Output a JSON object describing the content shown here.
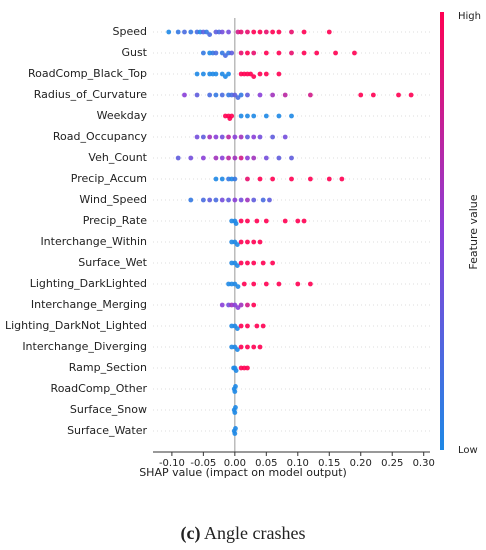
{
  "chart_data": {
    "type": "beeswarm",
    "xlabel": "SHAP value (impact on model output)",
    "colorbar_label": "Feature value",
    "colorbar_high": "High",
    "colorbar_low": "Low",
    "colormap": [
      "#1e88e5",
      "#8a3fd8",
      "#ff0052"
    ],
    "caption_label": "(c)",
    "caption": "Angle crashes",
    "xlim": [
      -0.13,
      0.31
    ],
    "xticks": [
      {
        "value": -0.1,
        "label": "-0.10"
      },
      {
        "value": -0.05,
        "label": "-0.05"
      },
      {
        "value": 0,
        "label": "0.00"
      },
      {
        "value": 0.05,
        "label": "0.05"
      },
      {
        "value": 0.1,
        "label": "0.10"
      },
      {
        "value": 0.15,
        "label": "0.15"
      },
      {
        "value": 0.2,
        "label": "0.20"
      },
      {
        "value": 0.25,
        "label": "0.25"
      },
      {
        "value": 0.3,
        "label": "0.30"
      }
    ],
    "series": [
      {
        "name": "Speed",
        "points": [
          [
            -0.105,
            0
          ],
          [
            -0.09,
            0.1
          ],
          [
            -0.08,
            0.2
          ],
          [
            -0.07,
            0.1
          ],
          [
            -0.06,
            0.2
          ],
          [
            -0.055,
            0
          ],
          [
            -0.05,
            0.3
          ],
          [
            -0.045,
            0.1
          ],
          [
            -0.04,
            0.2
          ],
          [
            -0.03,
            0.3
          ],
          [
            -0.025,
            0.2
          ],
          [
            -0.02,
            0.4
          ],
          [
            -0.01,
            0.4
          ],
          [
            0.005,
            0.8
          ],
          [
            0.01,
            0.9
          ],
          [
            0.02,
            0.9
          ],
          [
            0.03,
            1
          ],
          [
            0.04,
            1
          ],
          [
            0.05,
            0.9
          ],
          [
            0.06,
            1
          ],
          [
            0.07,
            1
          ],
          [
            0.09,
            0.9
          ],
          [
            0.11,
            1
          ],
          [
            0.15,
            1
          ]
        ]
      },
      {
        "name": "Gust",
        "points": [
          [
            -0.05,
            0.1
          ],
          [
            -0.04,
            0
          ],
          [
            -0.035,
            0.1
          ],
          [
            -0.03,
            0.2
          ],
          [
            -0.02,
            0.1
          ],
          [
            -0.015,
            0.2
          ],
          [
            -0.01,
            0.1
          ],
          [
            -0.005,
            0.3
          ],
          [
            0.01,
            0.9
          ],
          [
            0.02,
            1
          ],
          [
            0.03,
            0.9
          ],
          [
            0.05,
            1
          ],
          [
            0.07,
            1
          ],
          [
            0.09,
            0.9
          ],
          [
            0.11,
            1
          ],
          [
            0.13,
            1
          ],
          [
            0.16,
            1
          ],
          [
            0.19,
            1
          ]
        ]
      },
      {
        "name": "RoadComp_Black_Top",
        "points": [
          [
            -0.06,
            0
          ],
          [
            -0.05,
            0
          ],
          [
            -0.04,
            0
          ],
          [
            -0.035,
            0
          ],
          [
            -0.03,
            0
          ],
          [
            -0.02,
            0
          ],
          [
            -0.015,
            0
          ],
          [
            -0.01,
            0
          ],
          [
            0.01,
            1
          ],
          [
            0.015,
            1
          ],
          [
            0.02,
            1
          ],
          [
            0.025,
            1
          ],
          [
            0.03,
            1
          ],
          [
            0.04,
            1
          ],
          [
            0.05,
            1
          ],
          [
            0.07,
            1
          ]
        ]
      },
      {
        "name": "Radius_of_Curvature",
        "points": [
          [
            -0.08,
            0.5
          ],
          [
            -0.06,
            0.3
          ],
          [
            -0.04,
            0.2
          ],
          [
            -0.03,
            0.1
          ],
          [
            -0.02,
            0.2
          ],
          [
            -0.01,
            0.1
          ],
          [
            -0.005,
            0.2
          ],
          [
            0,
            0.3
          ],
          [
            0.005,
            0.2
          ],
          [
            0.01,
            0.1
          ],
          [
            0.02,
            0.3
          ],
          [
            0.04,
            0.5
          ],
          [
            0.06,
            0.6
          ],
          [
            0.08,
            0.7
          ],
          [
            0.12,
            0.8
          ],
          [
            0.2,
            1
          ],
          [
            0.22,
            1
          ],
          [
            0.26,
            1
          ],
          [
            0.28,
            1
          ]
        ]
      },
      {
        "name": "Weekday",
        "points": [
          [
            -0.015,
            1
          ],
          [
            -0.01,
            1
          ],
          [
            -0.008,
            1
          ],
          [
            -0.005,
            1
          ],
          [
            0.01,
            0
          ],
          [
            0.02,
            0
          ],
          [
            0.03,
            0
          ],
          [
            0.05,
            0
          ],
          [
            0.07,
            0
          ],
          [
            0.09,
            0
          ]
        ]
      },
      {
        "name": "Road_Occupancy",
        "points": [
          [
            -0.06,
            0.4
          ],
          [
            -0.05,
            0.3
          ],
          [
            -0.04,
            0.6
          ],
          [
            -0.03,
            0.5
          ],
          [
            -0.02,
            0.4
          ],
          [
            -0.01,
            0.7
          ],
          [
            0,
            0.5
          ],
          [
            0.01,
            0.6
          ],
          [
            0.02,
            0.3
          ],
          [
            0.03,
            0.5
          ],
          [
            0.04,
            0.4
          ],
          [
            0.06,
            0.3
          ],
          [
            0.08,
            0.4
          ]
        ]
      },
      {
        "name": "Veh_Count",
        "points": [
          [
            -0.09,
            0.3
          ],
          [
            -0.07,
            0.4
          ],
          [
            -0.05,
            0.5
          ],
          [
            -0.03,
            0.6
          ],
          [
            -0.02,
            0.5
          ],
          [
            -0.01,
            0.7
          ],
          [
            0,
            0.6
          ],
          [
            0.01,
            0.8
          ],
          [
            0.02,
            0.5
          ],
          [
            0.03,
            0.6
          ],
          [
            0.05,
            0.4
          ],
          [
            0.07,
            0.3
          ],
          [
            0.09,
            0.3
          ]
        ]
      },
      {
        "name": "Precip_Accum",
        "points": [
          [
            -0.03,
            0
          ],
          [
            -0.02,
            0
          ],
          [
            -0.01,
            0.1
          ],
          [
            -0.005,
            0
          ],
          [
            0,
            0.1
          ],
          [
            0.02,
            0.9
          ],
          [
            0.04,
            1
          ],
          [
            0.06,
            1
          ],
          [
            0.09,
            1
          ],
          [
            0.12,
            1
          ],
          [
            0.15,
            1
          ],
          [
            0.17,
            1
          ]
        ]
      },
      {
        "name": "Wind_Speed",
        "points": [
          [
            -0.07,
            0.1
          ],
          [
            -0.05,
            0.2
          ],
          [
            -0.04,
            0.3
          ],
          [
            -0.03,
            0.2
          ],
          [
            -0.02,
            0.4
          ],
          [
            -0.01,
            0.3
          ],
          [
            0,
            0.5
          ],
          [
            0.01,
            0.4
          ],
          [
            0.02,
            0.6
          ],
          [
            0.03,
            0.3
          ],
          [
            0.045,
            0.2
          ],
          [
            0.055,
            0.3
          ]
        ]
      },
      {
        "name": "Precip_Rate",
        "points": [
          [
            -0.005,
            0
          ],
          [
            0,
            0
          ],
          [
            0.002,
            0
          ],
          [
            0.01,
            1
          ],
          [
            0.02,
            1
          ],
          [
            0.035,
            1
          ],
          [
            0.05,
            1
          ],
          [
            0.08,
            1
          ],
          [
            0.1,
            1
          ],
          [
            0.11,
            1
          ]
        ]
      },
      {
        "name": "Interchange_Within",
        "points": [
          [
            -0.005,
            0
          ],
          [
            0,
            0
          ],
          [
            0.004,
            0
          ],
          [
            0.01,
            1
          ],
          [
            0.02,
            1
          ],
          [
            0.03,
            1
          ],
          [
            0.04,
            1
          ]
        ]
      },
      {
        "name": "Surface_Wet",
        "points": [
          [
            -0.005,
            0
          ],
          [
            0,
            0
          ],
          [
            0.004,
            0
          ],
          [
            0.01,
            1
          ],
          [
            0.02,
            1
          ],
          [
            0.03,
            1
          ],
          [
            0.045,
            1
          ],
          [
            0.06,
            1
          ]
        ]
      },
      {
        "name": "Lighting_DarkLighted",
        "points": [
          [
            -0.01,
            0
          ],
          [
            -0.005,
            0
          ],
          [
            0,
            0
          ],
          [
            0.005,
            0
          ],
          [
            0.015,
            1
          ],
          [
            0.03,
            1
          ],
          [
            0.05,
            1
          ],
          [
            0.07,
            1
          ],
          [
            0.1,
            1
          ],
          [
            0.12,
            1
          ]
        ]
      },
      {
        "name": "Interchange_Merging",
        "points": [
          [
            -0.02,
            0.5
          ],
          [
            -0.01,
            0.4
          ],
          [
            -0.005,
            0.6
          ],
          [
            0,
            0.5
          ],
          [
            0.005,
            0.5
          ],
          [
            0.01,
            0.6
          ],
          [
            0.02,
            0.8
          ],
          [
            0.03,
            1
          ]
        ]
      },
      {
        "name": "Lighting_DarkNot_Lighted",
        "points": [
          [
            -0.005,
            0
          ],
          [
            0,
            0
          ],
          [
            0.004,
            0
          ],
          [
            0.01,
            1
          ],
          [
            0.02,
            1
          ],
          [
            0.035,
            1
          ],
          [
            0.045,
            1
          ]
        ]
      },
      {
        "name": "Interchange_Diverging",
        "points": [
          [
            -0.005,
            0
          ],
          [
            0,
            0
          ],
          [
            0.004,
            0
          ],
          [
            0.01,
            1
          ],
          [
            0.02,
            1
          ],
          [
            0.03,
            1
          ],
          [
            0.04,
            1
          ]
        ]
      },
      {
        "name": "Ramp_Section",
        "points": [
          [
            -0.002,
            0
          ],
          [
            0,
            0
          ],
          [
            0.002,
            0
          ],
          [
            0.01,
            1
          ],
          [
            0.015,
            1
          ],
          [
            0.02,
            1
          ]
        ]
      },
      {
        "name": "RoadComp_Other",
        "points": [
          [
            -0.001,
            0
          ],
          [
            0,
            0
          ],
          [
            0.001,
            0
          ]
        ]
      },
      {
        "name": "Surface_Snow",
        "points": [
          [
            -0.001,
            0
          ],
          [
            0,
            0
          ],
          [
            0.001,
            0
          ]
        ]
      },
      {
        "name": "Surface_Water",
        "points": [
          [
            -0.001,
            0
          ],
          [
            0,
            0
          ],
          [
            0.001,
            0
          ]
        ]
      }
    ]
  }
}
